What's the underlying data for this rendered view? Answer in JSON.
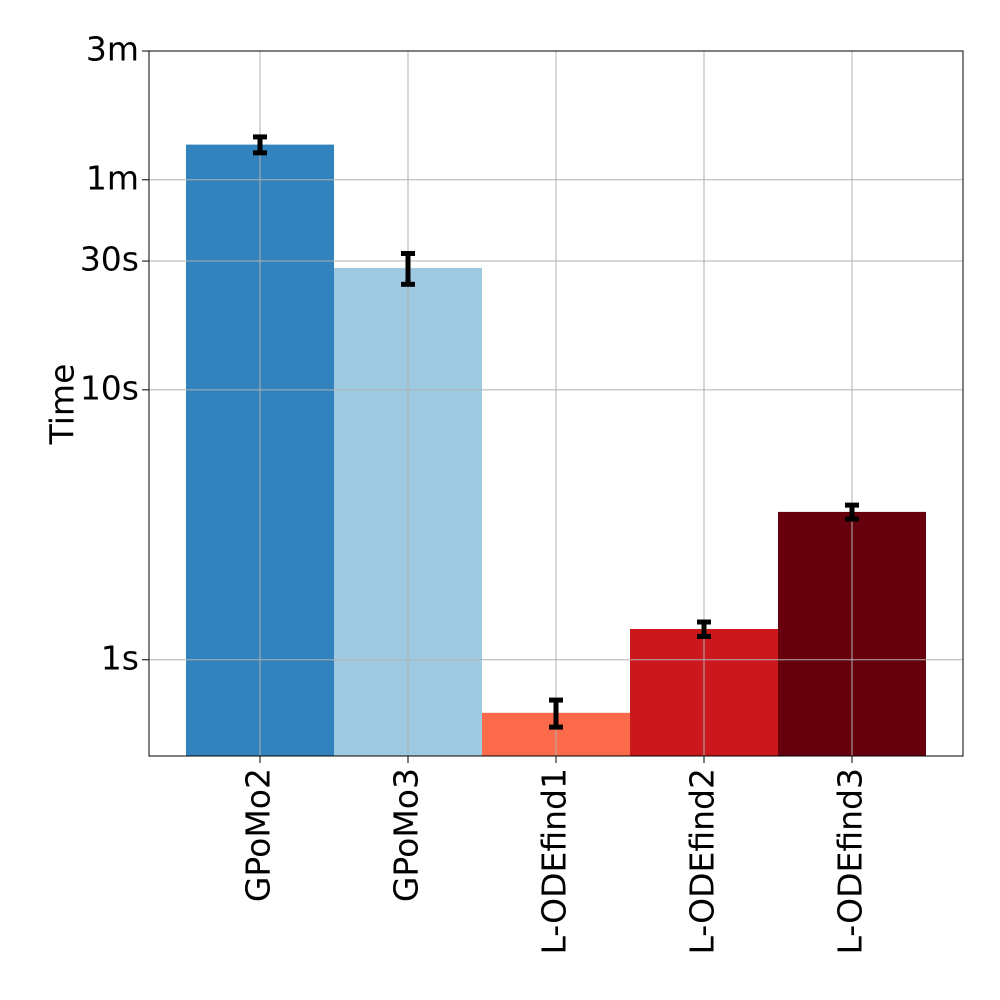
{
  "chart_data": {
    "type": "bar",
    "ylabel": "Time",
    "log_y": true,
    "grid": true,
    "categories": [
      "GPoMo2",
      "GPoMo3",
      "L-ODEfind1",
      "L-ODEfind2",
      "L-ODEfind3"
    ],
    "values": [
      81,
      28.3,
      0.636,
      1.3,
      3.53
    ],
    "errors": [
      5.5,
      3.7,
      0.073,
      0.08,
      0.21
    ],
    "colors": [
      "#3182bd",
      "#9ecae1",
      "#fb6a4a",
      "#cb181d",
      "#67000d"
    ],
    "ylim": [
      0.44,
      180
    ],
    "yticks": [
      {
        "value": 1,
        "label": "1s"
      },
      {
        "value": 10,
        "label": "10s"
      },
      {
        "value": 30,
        "label": "30s"
      },
      {
        "value": 60,
        "label": "1m"
      },
      {
        "value": 180,
        "label": "3m"
      }
    ]
  }
}
